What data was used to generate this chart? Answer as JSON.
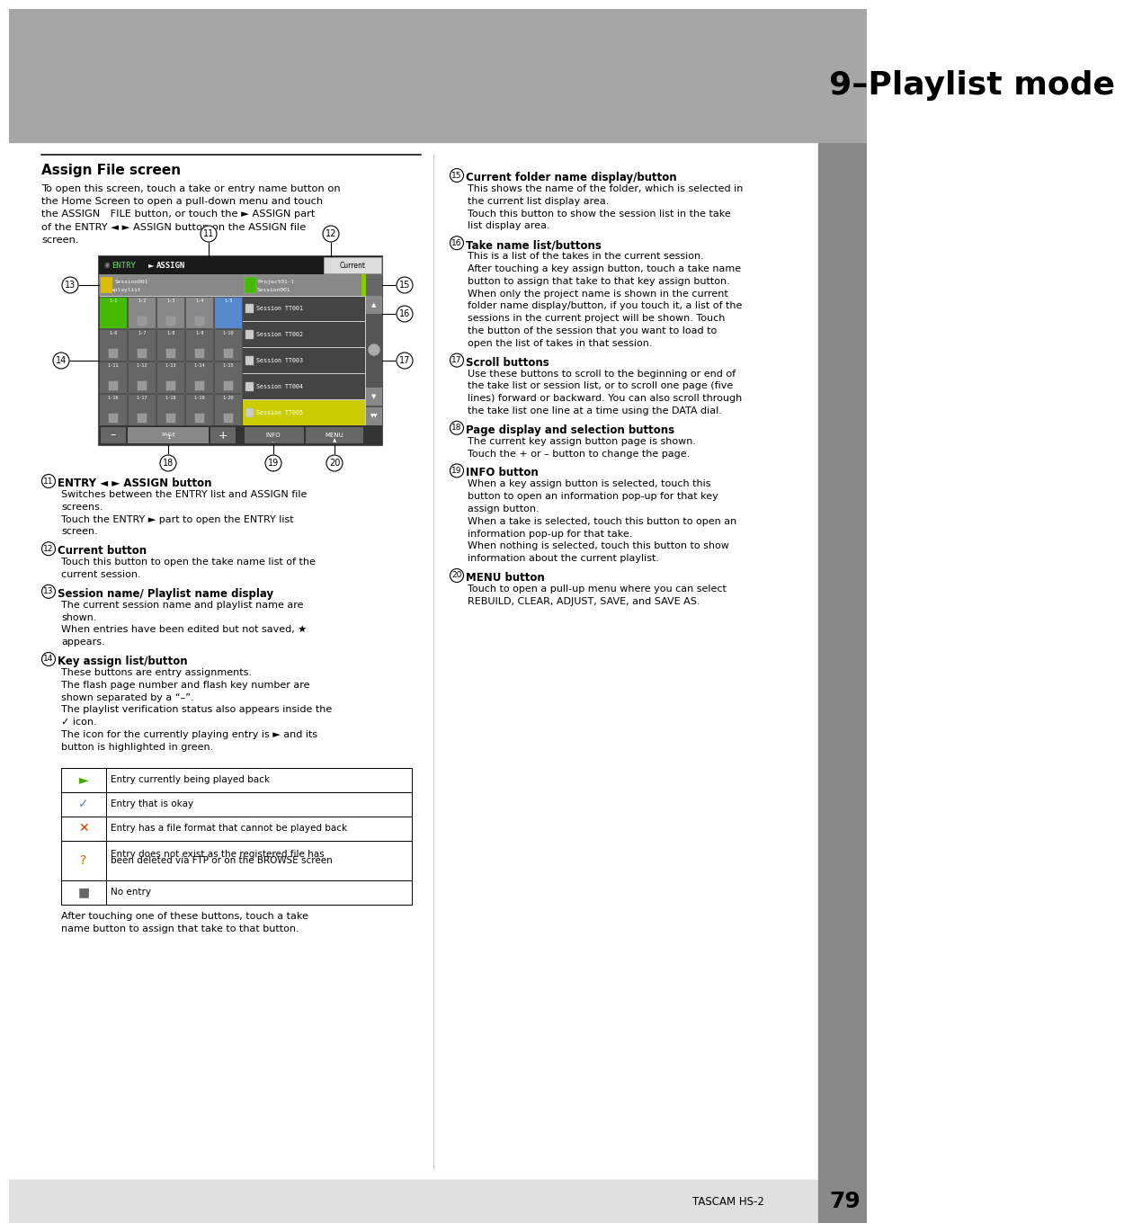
{
  "title": "9–Playlist mode",
  "page_num": "79",
  "brand": "TASCAM HS-2",
  "section_title": "Assign File screen",
  "intro_lines": [
    "To open this screen, touch a take or entry name button on",
    "the Home Screen to open a pull-down menu and touch",
    "the ASSIGN FILE button, or touch the ► ASSIGN part",
    "of the ENTRY ◄ ► ASSIGN button on the ASSIGN file",
    "screen."
  ],
  "left_entries": [
    {
      "num": "11",
      "heading": "ENTRY ◄ ► ASSIGN button",
      "body": [
        "Switches between the ENTRY list and ASSIGN file",
        "screens.",
        "Touch the ENTRY ► part to open the ENTRY list",
        "screen."
      ]
    },
    {
      "num": "12",
      "heading": "Current button",
      "body": [
        "Touch this button to open the take name list of the",
        "current session."
      ]
    },
    {
      "num": "13",
      "heading": "Session name/ Playlist name display",
      "body": [
        "The current session name and playlist name are",
        "shown.",
        "When entries have been edited but not saved, ★",
        "appears."
      ]
    },
    {
      "num": "14",
      "heading": "Key assign list/button",
      "body": [
        "These buttons are entry assignments.",
        "The flash page number and flash key number are",
        "shown separated by a “–”.",
        "The playlist verification status also appears inside the",
        "✓ icon.",
        "The icon for the currently playing entry is ► and its",
        "button is highlighted in green."
      ]
    }
  ],
  "table_rows": [
    {
      "icon": "►",
      "color": "#44aa00",
      "desc": "Entry currently being played back",
      "lines": 1
    },
    {
      "icon": "✓",
      "color": "#4488cc",
      "desc": "Entry that is okay",
      "lines": 1
    },
    {
      "icon": "✕",
      "color": "#dd3300",
      "desc": "Entry has a file format that cannot be played back",
      "lines": 1
    },
    {
      "icon": "?",
      "color": "#cc6600",
      "desc": "Entry does not exist as the registered file has\nbeen deleted via FTP or on the BROWSE screen",
      "lines": 2
    },
    {
      "icon": "■",
      "color": "#666666",
      "desc": "No entry",
      "lines": 1
    }
  ],
  "after_table": [
    "After touching one of these buttons, touch a take",
    "name button to assign that take to that button."
  ],
  "right_entries": [
    {
      "num": "15",
      "heading": "Current folder name display/button",
      "body": [
        "This shows the name of the folder, which is selected in",
        "the current list display area.",
        "Touch this button to show the session list in the take",
        "list display area."
      ]
    },
    {
      "num": "16",
      "heading": "Take name list/buttons",
      "body": [
        "This is a list of the takes in the current session.",
        "After touching a key assign button, touch a take name",
        "button to assign that take to that key assign button.",
        "When only the project name is shown in the current",
        "folder name display/button, if you touch it, a list of the",
        "sessions in the current project will be shown. Touch",
        "the button of the session that you want to load to",
        "open the list of takes in that session."
      ]
    },
    {
      "num": "17",
      "heading": "Scroll buttons",
      "body": [
        "Use these buttons to scroll to the beginning or end of",
        "the take list or session list, or to scroll one page (five",
        "lines) forward or backward. You can also scroll through",
        "the take list one line at a time using the DATA dial."
      ]
    },
    {
      "num": "18",
      "heading": "Page display and selection buttons",
      "body": [
        "The current key assign button page is shown.",
        "Touch the + or – button to change the page."
      ]
    },
    {
      "num": "19",
      "heading": "INFO button",
      "body": [
        "When a key assign button is selected, touch this",
        "button to open an information pop-up for that key",
        "assign button.",
        "When a take is selected, touch this button to open an",
        "information pop-up for that take.",
        "When nothing is selected, touch this button to show",
        "information about the current playlist."
      ]
    },
    {
      "num": "20",
      "heading": "MENU button",
      "body": [
        "Touch to open a pull-up menu where you can select",
        "REBUILD, CLEAR, ADJUST, SAVE, and SAVE AS."
      ]
    }
  ]
}
